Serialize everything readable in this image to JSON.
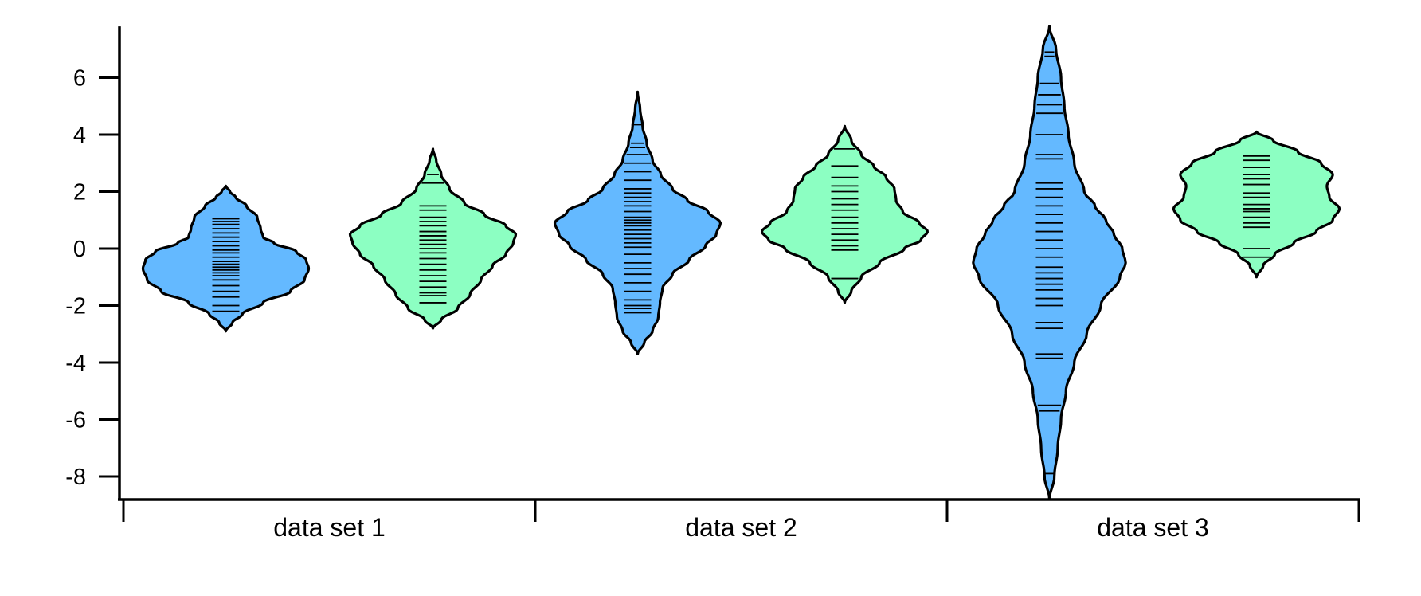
{
  "chart_data": {
    "type": "violin",
    "title": "",
    "xlabel": "",
    "ylabel": "",
    "ylim": [
      -8.9,
      7.8
    ],
    "y_ticks": [
      6,
      4,
      2,
      0,
      -2,
      -4,
      -6,
      -8
    ],
    "y_tick_labels": [
      "6",
      "4",
      "2",
      "0",
      "-2",
      "-4",
      "-6",
      "-8"
    ],
    "categories": [
      "data set 1",
      "data set 2",
      "data set 3"
    ],
    "grid": false,
    "legend": "none",
    "colors": {
      "blue": "#64b9ff",
      "green": "#8cffc2",
      "outline": "#000000"
    },
    "series": [
      {
        "color_key": "blue",
        "violins": [
          {
            "category": "data set 1",
            "ymin": -2.9,
            "ymax": 2.2,
            "width_profile": [
              [
                -2.9,
                0.0
              ],
              [
                -2.6,
                0.08
              ],
              [
                -2.3,
                0.2
              ],
              [
                -1.9,
                0.45
              ],
              [
                -1.5,
                0.78
              ],
              [
                -1.1,
                0.95
              ],
              [
                -0.7,
                1.0
              ],
              [
                -0.4,
                0.97
              ],
              [
                -0.1,
                0.85
              ],
              [
                0.2,
                0.58
              ],
              [
                0.4,
                0.45
              ],
              [
                0.7,
                0.42
              ],
              [
                1.1,
                0.38
              ],
              [
                1.5,
                0.25
              ],
              [
                1.8,
                0.12
              ],
              [
                2.0,
                0.05
              ],
              [
                2.2,
                0.0
              ]
            ],
            "points": [
              1.05,
              0.95,
              0.85,
              0.7,
              0.55,
              0.4,
              0.25,
              0.1,
              -0.05,
              -0.15,
              -0.3,
              -0.45,
              -0.55,
              -0.65,
              -0.75,
              -0.85,
              -0.95,
              -1.1,
              -1.3,
              -1.5,
              -1.7,
              -2.0,
              -2.2
            ]
          },
          {
            "category": "data set 2",
            "ymin": -3.7,
            "ymax": 5.5,
            "width_profile": [
              [
                -3.7,
                0.0
              ],
              [
                -3.3,
                0.08
              ],
              [
                -2.9,
                0.18
              ],
              [
                -2.4,
                0.25
              ],
              [
                -1.9,
                0.27
              ],
              [
                -1.4,
                0.3
              ],
              [
                -0.9,
                0.42
              ],
              [
                -0.4,
                0.62
              ],
              [
                0.1,
                0.82
              ],
              [
                0.5,
                0.95
              ],
              [
                0.9,
                1.0
              ],
              [
                1.3,
                0.85
              ],
              [
                1.7,
                0.6
              ],
              [
                2.1,
                0.42
              ],
              [
                2.6,
                0.28
              ],
              [
                3.1,
                0.18
              ],
              [
                3.7,
                0.11
              ],
              [
                4.3,
                0.06
              ],
              [
                4.9,
                0.03
              ],
              [
                5.5,
                0.0
              ]
            ],
            "points": [
              4.35,
              3.7,
              3.55,
              3.3,
              3.0,
              2.7,
              2.4,
              2.1,
              1.95,
              1.8,
              1.65,
              1.5,
              1.3,
              1.1,
              1.0,
              0.9,
              0.8,
              0.65,
              0.5,
              0.35,
              0.2,
              0.05,
              -0.2,
              -0.5,
              -0.7,
              -0.9,
              -1.2,
              -1.5,
              -1.8,
              -2.0,
              -2.1,
              -2.25
            ]
          },
          {
            "category": "data set 3",
            "ymin": -8.8,
            "ymax": 7.8,
            "width_profile": [
              [
                -8.8,
                0.0
              ],
              [
                -8.0,
                0.06
              ],
              [
                -7.0,
                0.1
              ],
              [
                -6.0,
                0.14
              ],
              [
                -5.0,
                0.2
              ],
              [
                -4.0,
                0.3
              ],
              [
                -3.0,
                0.45
              ],
              [
                -2.0,
                0.62
              ],
              [
                -1.0,
                0.85
              ],
              [
                -0.5,
                0.92
              ],
              [
                0.0,
                0.88
              ],
              [
                0.5,
                0.78
              ],
              [
                1.0,
                0.68
              ],
              [
                1.5,
                0.55
              ],
              [
                2.0,
                0.42
              ],
              [
                3.0,
                0.3
              ],
              [
                4.0,
                0.23
              ],
              [
                5.0,
                0.18
              ],
              [
                6.0,
                0.14
              ],
              [
                7.0,
                0.08
              ],
              [
                7.8,
                0.0
              ]
            ],
            "points": [
              6.9,
              6.75,
              5.8,
              5.4,
              5.05,
              4.75,
              4.0,
              3.3,
              3.15,
              2.3,
              2.1,
              1.8,
              1.5,
              1.2,
              0.9,
              0.6,
              0.3,
              0.0,
              -0.3,
              -0.65,
              -0.85,
              -1.05,
              -1.25,
              -1.45,
              -1.75,
              -2.0,
              -2.6,
              -2.8,
              -3.7,
              -3.85,
              -5.5,
              -5.7,
              -7.9
            ]
          }
        ]
      },
      {
        "color_key": "green",
        "violins": [
          {
            "category": "data set 1",
            "ymin": -2.8,
            "ymax": 3.5,
            "width_profile": [
              [
                -2.8,
                0.0
              ],
              [
                -2.5,
                0.1
              ],
              [
                -2.1,
                0.3
              ],
              [
                -1.6,
                0.45
              ],
              [
                -1.1,
                0.58
              ],
              [
                -0.6,
                0.72
              ],
              [
                -0.2,
                0.88
              ],
              [
                0.2,
                0.97
              ],
              [
                0.5,
                1.0
              ],
              [
                0.8,
                0.88
              ],
              [
                1.2,
                0.62
              ],
              [
                1.6,
                0.38
              ],
              [
                2.1,
                0.2
              ],
              [
                2.6,
                0.1
              ],
              [
                3.1,
                0.04
              ],
              [
                3.5,
                0.0
              ]
            ],
            "points": [
              2.6,
              2.3,
              1.5,
              1.35,
              1.1,
              0.95,
              0.8,
              0.6,
              0.45,
              0.3,
              0.15,
              0.0,
              -0.15,
              -0.35,
              -0.55,
              -0.75,
              -0.95,
              -1.15,
              -1.35,
              -1.55,
              -1.65,
              -1.9
            ]
          },
          {
            "category": "data set 2",
            "ymin": -1.9,
            "ymax": 4.3,
            "width_profile": [
              [
                -1.9,
                0.0
              ],
              [
                -1.5,
                0.08
              ],
              [
                -1.0,
                0.2
              ],
              [
                -0.5,
                0.42
              ],
              [
                0.0,
                0.72
              ],
              [
                0.3,
                0.92
              ],
              [
                0.6,
                1.0
              ],
              [
                0.9,
                0.9
              ],
              [
                1.3,
                0.7
              ],
              [
                1.7,
                0.62
              ],
              [
                2.1,
                0.6
              ],
              [
                2.5,
                0.5
              ],
              [
                2.9,
                0.35
              ],
              [
                3.3,
                0.2
              ],
              [
                3.8,
                0.08
              ],
              [
                4.3,
                0.0
              ]
            ],
            "points": [
              3.5,
              2.9,
              2.5,
              2.2,
              2.0,
              1.75,
              1.55,
              1.35,
              1.1,
              0.9,
              0.7,
              0.5,
              0.3,
              0.1,
              -0.05,
              -1.05
            ]
          },
          {
            "category": "data set 3",
            "ymin": -1.0,
            "ymax": 4.1,
            "width_profile": [
              [
                -1.0,
                0.0
              ],
              [
                -0.6,
                0.08
              ],
              [
                -0.2,
                0.22
              ],
              [
                0.2,
                0.45
              ],
              [
                0.6,
                0.72
              ],
              [
                1.0,
                0.92
              ],
              [
                1.4,
                1.0
              ],
              [
                1.8,
                0.88
              ],
              [
                2.2,
                0.85
              ],
              [
                2.6,
                0.92
              ],
              [
                3.0,
                0.78
              ],
              [
                3.4,
                0.5
              ],
              [
                3.8,
                0.2
              ],
              [
                4.1,
                0.0
              ]
            ],
            "points": [
              3.25,
              3.1,
              2.85,
              2.6,
              2.45,
              2.25,
              1.95,
              1.8,
              1.55,
              1.4,
              1.3,
              1.1,
              0.9,
              0.75,
              0.0,
              -0.3
            ]
          }
        ]
      }
    ]
  }
}
